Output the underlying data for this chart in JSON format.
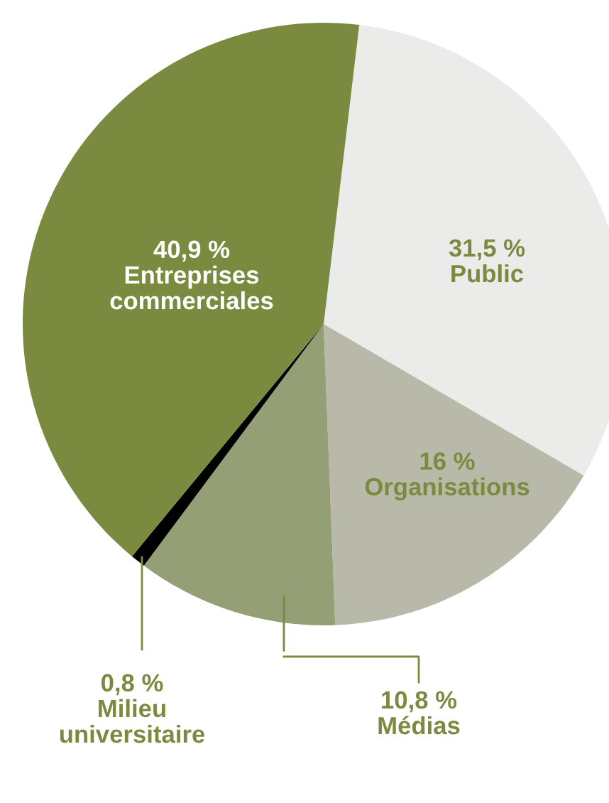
{
  "chart_data": {
    "type": "pie",
    "categories": [
      "Public",
      "Organisations",
      "Médias",
      "Milieu universitaire",
      "Entreprises commerciales"
    ],
    "values": [
      31.5,
      16,
      10.8,
      0.8,
      40.9
    ],
    "value_labels": [
      "31,5 %",
      "16 %",
      "10,8 %",
      "0,8 %",
      "40,9 %"
    ],
    "colors": [
      "#ebebe9",
      "#b8b9a8",
      "#949f75",
      "#000000",
      "#7a8b3f"
    ],
    "legend": false
  }
}
